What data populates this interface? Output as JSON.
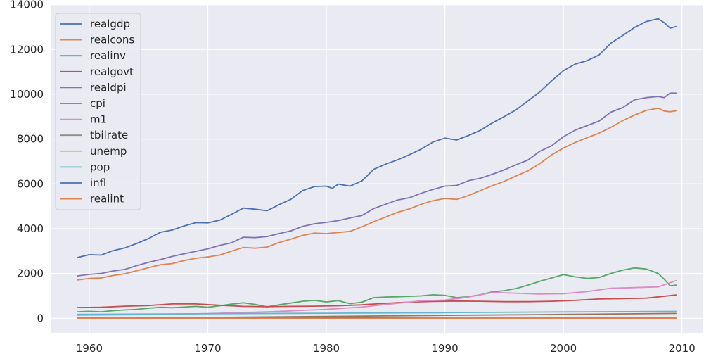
{
  "chart_data": {
    "type": "line",
    "title": "",
    "xlabel": "",
    "ylabel": "",
    "xlim": [
      1956.8,
      2011.8
    ],
    "ylim": [
      -650,
      14050
    ],
    "grid": true,
    "legend_position": "top-left",
    "xticks": [
      1960,
      1970,
      1980,
      1990,
      2000,
      2010
    ],
    "xtick_labels": [
      "1960",
      "1970",
      "1980",
      "1990",
      "2000",
      "2010"
    ],
    "yticks": [
      0,
      2000,
      4000,
      6000,
      8000,
      10000,
      12000,
      14000
    ],
    "ytick_labels": [
      "0",
      "2000",
      "4000",
      "6000",
      "8000",
      "10000",
      "12000",
      "14000"
    ],
    "series": [
      {
        "name": "realgdp",
        "color": "#4c72b0",
        "x": [
          1959.0,
          1960.0,
          1961.0,
          1962.0,
          1963.0,
          1964.0,
          1965.0,
          1966.0,
          1967.0,
          1968.0,
          1969.0,
          1970.0,
          1971.0,
          1972.0,
          1973.0,
          1974.0,
          1975.0,
          1976.0,
          1977.0,
          1978.0,
          1979.0,
          1980.0,
          1980.5,
          1981.0,
          1982.0,
          1983.0,
          1984.0,
          1985.0,
          1986.0,
          1987.0,
          1988.0,
          1989.0,
          1990.0,
          1991.0,
          1992.0,
          1993.0,
          1994.0,
          1995.0,
          1996.0,
          1997.0,
          1998.0,
          1999.0,
          2000.0,
          2001.0,
          2002.0,
          2003.0,
          2004.0,
          2005.0,
          2006.0,
          2007.0,
          2008.0,
          2008.5,
          2009.0,
          2009.5
        ],
        "values": [
          2710,
          2840,
          2820,
          3020,
          3140,
          3340,
          3560,
          3840,
          3940,
          4120,
          4270,
          4260,
          4380,
          4640,
          4920,
          4870,
          4800,
          5070,
          5310,
          5700,
          5880,
          5900,
          5800,
          5990,
          5900,
          6130,
          6650,
          6880,
          7070,
          7300,
          7550,
          7870,
          8040,
          7960,
          8160,
          8390,
          8720,
          9000,
          9300,
          9700,
          10100,
          10600,
          11050,
          11350,
          11500,
          11750,
          12280,
          12620,
          12980,
          13250,
          13370,
          13200,
          12950,
          13020
        ]
      },
      {
        "name": "realcons",
        "color": "#dd8452",
        "x": [
          1959.0,
          1960.0,
          1961.0,
          1962.0,
          1963.0,
          1964.0,
          1965.0,
          1966.0,
          1967.0,
          1968.0,
          1969.0,
          1970.0,
          1971.0,
          1972.0,
          1973.0,
          1974.0,
          1975.0,
          1976.0,
          1977.0,
          1978.0,
          1979.0,
          1980.0,
          1981.0,
          1982.0,
          1983.0,
          1984.0,
          1985.0,
          1986.0,
          1987.0,
          1988.0,
          1989.0,
          1990.0,
          1991.0,
          1992.0,
          1993.0,
          1994.0,
          1995.0,
          1996.0,
          1997.0,
          1998.0,
          1999.0,
          2000.0,
          2001.0,
          2002.0,
          2003.0,
          2004.0,
          2005.0,
          2006.0,
          2007.0,
          2008.0,
          2008.5,
          2009.0,
          2009.5
        ],
        "values": [
          1710,
          1780,
          1800,
          1910,
          1990,
          2120,
          2260,
          2390,
          2440,
          2580,
          2680,
          2740,
          2820,
          3000,
          3160,
          3130,
          3180,
          3380,
          3530,
          3700,
          3800,
          3780,
          3830,
          3880,
          4080,
          4310,
          4520,
          4730,
          4880,
          5090,
          5250,
          5350,
          5310,
          5480,
          5700,
          5920,
          6110,
          6350,
          6580,
          6900,
          7290,
          7600,
          7850,
          8060,
          8260,
          8520,
          8820,
          9070,
          9280,
          9380,
          9250,
          9220,
          9260
        ]
      },
      {
        "name": "realinv",
        "color": "#55a868",
        "x": [
          1959.0,
          1960.0,
          1961.0,
          1962.0,
          1963.0,
          1964.0,
          1965.0,
          1966.0,
          1967.0,
          1968.0,
          1969.0,
          1970.0,
          1971.0,
          1972.0,
          1973.0,
          1974.0,
          1975.0,
          1976.0,
          1977.0,
          1978.0,
          1979.0,
          1980.0,
          1981.0,
          1982.0,
          1983.0,
          1984.0,
          1985.0,
          1986.0,
          1987.0,
          1988.0,
          1989.0,
          1990.0,
          1991.0,
          1992.0,
          1993.0,
          1994.0,
          1995.0,
          1996.0,
          1997.0,
          1998.0,
          1999.0,
          2000.0,
          2001.0,
          2002.0,
          2003.0,
          2004.0,
          2005.0,
          2006.0,
          2007.0,
          2008.0,
          2008.5,
          2009.0,
          2009.5
        ],
        "values": [
          290,
          310,
          290,
          340,
          370,
          400,
          450,
          490,
          470,
          500,
          530,
          490,
          560,
          630,
          690,
          620,
          510,
          600,
          680,
          760,
          800,
          730,
          790,
          650,
          720,
          920,
          950,
          960,
          980,
          1000,
          1050,
          1020,
          920,
          960,
          1050,
          1180,
          1230,
          1330,
          1480,
          1650,
          1800,
          1950,
          1850,
          1780,
          1820,
          2000,
          2150,
          2250,
          2200,
          2000,
          1750,
          1450,
          1480
        ]
      },
      {
        "name": "realgovt",
        "color": "#c44e52",
        "x": [
          1959.0,
          1961.0,
          1963.0,
          1965.0,
          1967.0,
          1969.0,
          1971.0,
          1973.0,
          1975.0,
          1977.0,
          1979.0,
          1981.0,
          1983.0,
          1985.0,
          1987.0,
          1989.0,
          1991.0,
          1993.0,
          1995.0,
          1997.0,
          1999.0,
          2001.0,
          2003.0,
          2005.0,
          2007.0,
          2009.5
        ],
        "values": [
          480,
          490,
          540,
          570,
          640,
          640,
          580,
          530,
          520,
          530,
          540,
          560,
          600,
          670,
          720,
          750,
          770,
          760,
          740,
          740,
          760,
          800,
          860,
          880,
          900,
          1040
        ]
      },
      {
        "name": "realdpi",
        "color": "#8172b3",
        "x": [
          1959.0,
          1960.0,
          1961.0,
          1962.0,
          1963.0,
          1964.0,
          1965.0,
          1966.0,
          1967.0,
          1968.0,
          1969.0,
          1970.0,
          1971.0,
          1972.0,
          1973.0,
          1974.0,
          1975.0,
          1976.0,
          1977.0,
          1978.0,
          1979.0,
          1980.0,
          1981.0,
          1982.0,
          1983.0,
          1984.0,
          1985.0,
          1986.0,
          1987.0,
          1988.0,
          1989.0,
          1990.0,
          1991.0,
          1992.0,
          1993.0,
          1994.0,
          1995.0,
          1996.0,
          1997.0,
          1998.0,
          1999.0,
          2000.0,
          2001.0,
          2002.0,
          2003.0,
          2004.0,
          2005.0,
          2006.0,
          2007.0,
          2008.0,
          2008.5,
          2009.0,
          2009.5
        ],
        "values": [
          1890,
          1960,
          2000,
          2110,
          2180,
          2350,
          2500,
          2620,
          2760,
          2880,
          2990,
          3100,
          3250,
          3370,
          3620,
          3600,
          3650,
          3780,
          3900,
          4100,
          4220,
          4280,
          4360,
          4480,
          4590,
          4900,
          5090,
          5280,
          5380,
          5580,
          5750,
          5900,
          5930,
          6140,
          6250,
          6430,
          6620,
          6850,
          7060,
          7450,
          7700,
          8100,
          8400,
          8600,
          8800,
          9200,
          9400,
          9750,
          9850,
          9900,
          9850,
          10050,
          10050
        ]
      },
      {
        "name": "cpi",
        "color": "#937860",
        "x": [
          1959.0,
          1970.0,
          1980.0,
          1990.0,
          2000.0,
          2009.5
        ],
        "values": [
          29,
          39,
          82,
          131,
          172,
          216
        ]
      },
      {
        "name": "m1",
        "color": "#da8bc3",
        "x": [
          1959.0,
          1965.0,
          1970.0,
          1975.0,
          1980.0,
          1983.0,
          1986.0,
          1988.0,
          1990.0,
          1992.0,
          1994.0,
          1996.0,
          1998.0,
          2000.0,
          2002.0,
          2004.0,
          2006.0,
          2008.0,
          2009.5
        ],
        "values": [
          140,
          165,
          210,
          285,
          400,
          500,
          670,
          780,
          810,
          950,
          1150,
          1120,
          1080,
          1100,
          1190,
          1340,
          1370,
          1400,
          1680
        ]
      },
      {
        "name": "tbilrate",
        "color": "#8c8c8c",
        "x": [
          1959.0,
          1970.0,
          1980.0,
          1990.0,
          2000.0,
          2009.5
        ],
        "values": [
          3,
          6,
          12,
          8,
          6,
          0.2
        ]
      },
      {
        "name": "unemp",
        "color": "#ccb974",
        "x": [
          1959.0,
          1970.0,
          1980.0,
          1990.0,
          2000.0,
          2009.5
        ],
        "values": [
          5.5,
          5,
          7.5,
          5.5,
          4,
          9.5
        ]
      },
      {
        "name": "pop",
        "color": "#64b5cd",
        "x": [
          1959.0,
          1970.0,
          1980.0,
          1990.0,
          2000.0,
          2009.5
        ],
        "values": [
          177,
          204,
          227,
          250,
          282,
          308
        ]
      },
      {
        "name": "infl",
        "color": "#4c72b0",
        "x": [
          1959.0,
          1970.0,
          1980.0,
          1990.0,
          2000.0,
          2009.5
        ],
        "values": [
          0,
          5,
          12,
          6,
          3,
          3
        ]
      },
      {
        "name": "realint",
        "color": "#dd8452",
        "x": [
          1959.0,
          1970.0,
          1980.0,
          1990.0,
          2000.0,
          2009.5
        ],
        "values": [
          1,
          1,
          -2,
          2,
          3,
          -3
        ]
      }
    ]
  }
}
